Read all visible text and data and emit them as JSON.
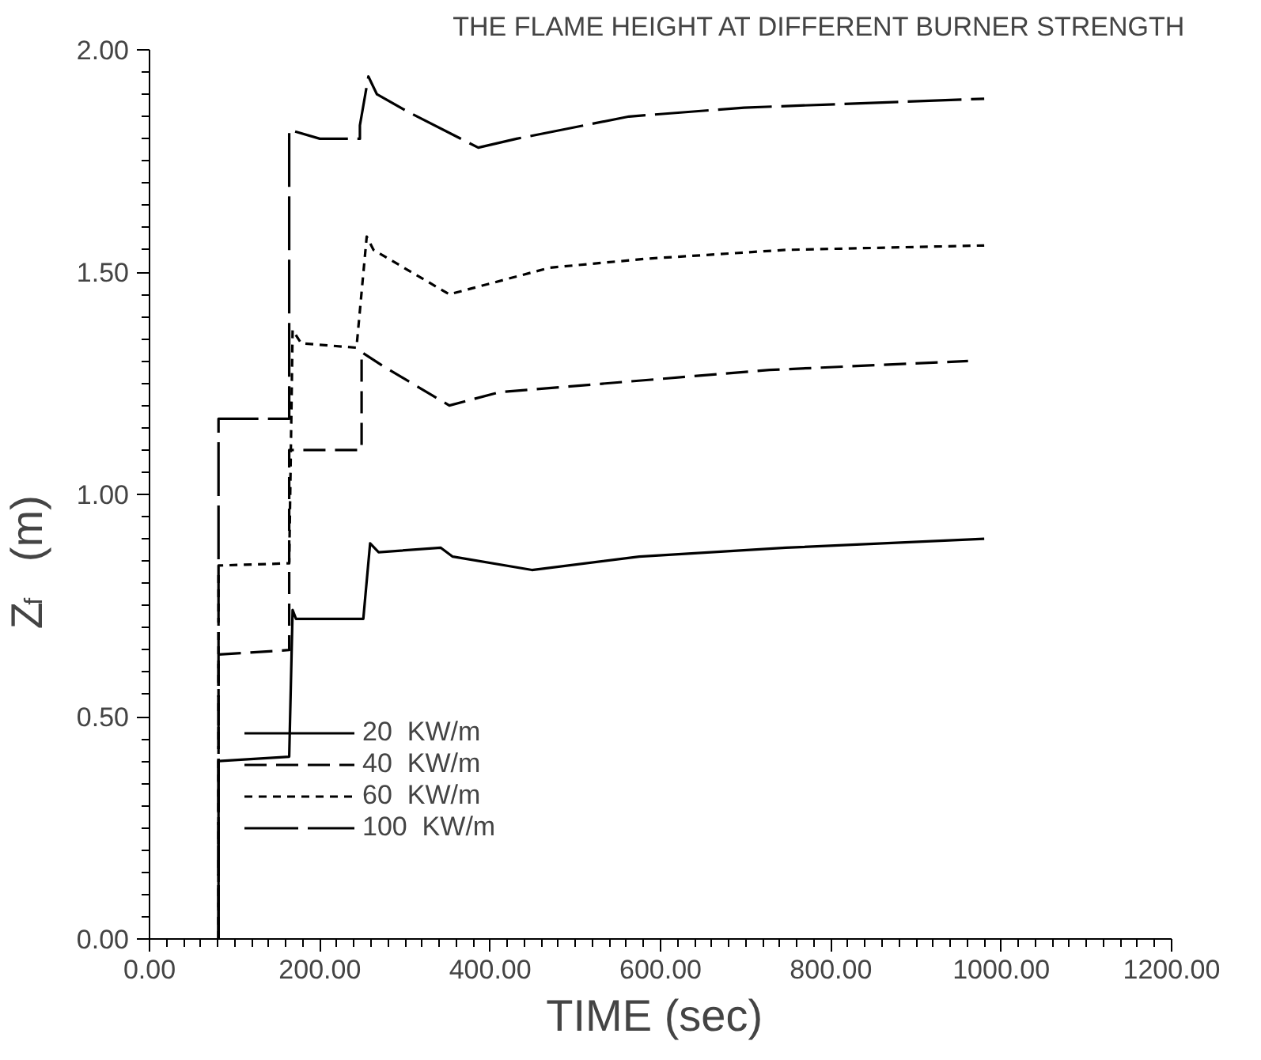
{
  "chart_data": {
    "type": "line",
    "title": "THE FLAME HEIGHT AT DIFFERENT BURNER STRENGTH",
    "xlabel": "TIME  (sec)",
    "ylabel": "Z$_{f}$  (m)",
    "xlim": [
      0,
      1200
    ],
    "ylim": [
      0,
      2
    ],
    "xticks": [
      {
        "value": 0,
        "label": "0.00"
      },
      {
        "value": 200,
        "label": "200.00"
      },
      {
        "value": 400,
        "label": "400.00"
      },
      {
        "value": 600,
        "label": "600.00"
      },
      {
        "value": 800,
        "label": "800.00"
      },
      {
        "value": 1000,
        "label": "1000.00"
      },
      {
        "value": 1200,
        "label": "1200.00"
      }
    ],
    "yticks": [
      {
        "value": 0,
        "label": "0.00"
      },
      {
        "value": 0.5,
        "label": "0.50"
      },
      {
        "value": 1,
        "label": "1.00"
      },
      {
        "value": 1.5,
        "label": "1.50"
      },
      {
        "value": 2,
        "label": "2.00"
      }
    ],
    "grid": false,
    "legend": "bottom left",
    "series": [
      {
        "name": "20  KW/m",
        "color": "#000000",
        "line_style": "solid",
        "x": [
          81,
          81,
          164,
          168,
          172,
          251,
          259,
          269,
          342,
          356,
          449,
          575,
          747,
          980
        ],
        "values": [
          0,
          0.4,
          0.41,
          0.74,
          0.72,
          0.72,
          0.89,
          0.87,
          0.88,
          0.86,
          0.83,
          0.86,
          0.88,
          0.9
        ]
      },
      {
        "name": "40  KW/m",
        "color": "#000000",
        "line_style": "dashed",
        "x": [
          81,
          81,
          164,
          164,
          200,
          249,
          249,
          273,
          352,
          411,
          728,
          961
        ],
        "values": [
          0,
          0.64,
          0.65,
          1.1,
          1.1,
          1.1,
          1.32,
          1.29,
          1.2,
          1.23,
          1.28,
          1.3
        ]
      },
      {
        "name": "60  KW/m",
        "color": "#000000",
        "line_style": "dotted",
        "x": [
          81,
          81,
          164,
          168,
          178,
          243,
          255,
          263,
          352,
          470,
          583,
          747,
          980
        ],
        "values": [
          0,
          0.84,
          0.845,
          1.37,
          1.34,
          1.33,
          1.58,
          1.55,
          1.45,
          1.51,
          1.53,
          1.55,
          1.56
        ]
      },
      {
        "name": "100  KW/m",
        "color": "#000000",
        "line_style": "dashed",
        "x": [
          81,
          81,
          164,
          164,
          200,
          247,
          247,
          257,
          267,
          304,
          386,
          431,
          563,
          698,
          980
        ],
        "values": [
          0,
          1.17,
          1.17,
          1.82,
          1.8,
          1.8,
          1.83,
          1.94,
          1.9,
          1.86,
          1.78,
          1.8,
          1.85,
          1.87,
          1.89
        ]
      }
    ]
  }
}
